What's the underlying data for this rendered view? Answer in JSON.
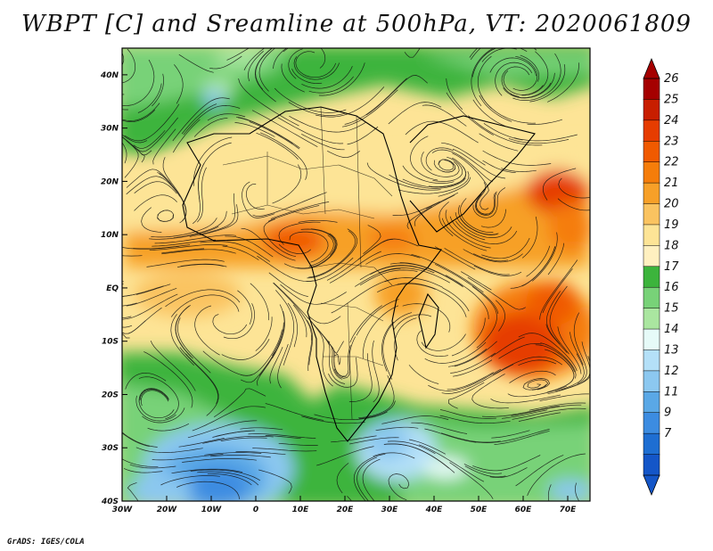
{
  "title": "WBPT [C] and Sreamline at 500hPa, VT: 2020061809",
  "credit": "GrADS: IGES/COLA",
  "map": {
    "lon_range": [
      -30,
      75
    ],
    "lat_range": [
      -40,
      45
    ],
    "lat_ticks": [
      {
        "value": 40,
        "label": "40N"
      },
      {
        "value": 30,
        "label": "30N"
      },
      {
        "value": 20,
        "label": "20N"
      },
      {
        "value": 10,
        "label": "10N"
      },
      {
        "value": 0,
        "label": "EQ"
      },
      {
        "value": -10,
        "label": "10S"
      },
      {
        "value": -20,
        "label": "20S"
      },
      {
        "value": -30,
        "label": "30S"
      },
      {
        "value": -40,
        "label": "40S"
      }
    ],
    "lon_ticks": [
      {
        "value": -30,
        "label": "30W"
      },
      {
        "value": -20,
        "label": "20W"
      },
      {
        "value": -10,
        "label": "10W"
      },
      {
        "value": 0,
        "label": "0"
      },
      {
        "value": 10,
        "label": "10E"
      },
      {
        "value": 20,
        "label": "20E"
      },
      {
        "value": 30,
        "label": "30E"
      },
      {
        "value": 40,
        "label": "40E"
      },
      {
        "value": 50,
        "label": "50E"
      },
      {
        "value": 60,
        "label": "60E"
      },
      {
        "value": 70,
        "label": "70E"
      }
    ]
  },
  "colorbar": {
    "labels": [
      "26",
      "25",
      "24",
      "23",
      "22",
      "21",
      "20",
      "19",
      "18",
      "17",
      "16",
      "15",
      "14",
      "13",
      "12",
      "11",
      "9",
      "7"
    ],
    "colors": [
      "#a50000",
      "#c81e00",
      "#e63c00",
      "#f05a00",
      "#f57d0a",
      "#f7a028",
      "#fac360",
      "#fde496",
      "#fff0c0",
      "#3cb43c",
      "#78d278",
      "#aae6a0",
      "#e6faf8",
      "#b4e0f8",
      "#8cc8f0",
      "#5aa8e6",
      "#3c8ce1",
      "#1e6ed2",
      "#1456c8"
    ]
  }
}
